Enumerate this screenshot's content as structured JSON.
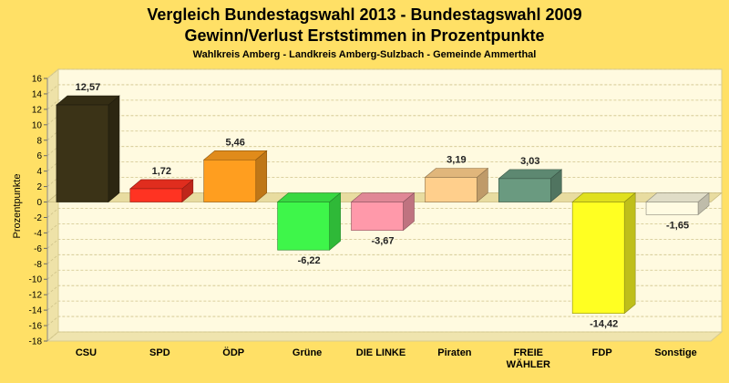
{
  "chart_data": {
    "type": "bar",
    "title": "Vergleich Bundestagswahl 2013 - Bundestagswahl 2009",
    "subtitle": "Gewinn/Verlust Erststimmen in Prozentpunkte",
    "caption": "Wahlkreis Amberg - Landkreis Amberg-Sulzbach - Gemeinde Ammerthal",
    "ylabel": "Prozentpunkte",
    "xlabel": "",
    "ylim": [
      -18,
      16
    ],
    "yticks": [
      16,
      14,
      12,
      10,
      8,
      6,
      4,
      2,
      0,
      -2,
      -4,
      -6,
      -8,
      -10,
      -12,
      -14,
      -16,
      -18
    ],
    "grid": true,
    "categories": [
      "CSU",
      "SPD",
      "ÖDP",
      "Grüne",
      "DIE LINKE",
      "Piraten",
      "FREIE WÄHLER",
      "FDP",
      "Sonstige"
    ],
    "category_label_lines": [
      [
        "CSU"
      ],
      [
        "SPD"
      ],
      [
        "ÖDP"
      ],
      [
        "Grüne"
      ],
      [
        "DIE LINKE"
      ],
      [
        "Piraten"
      ],
      [
        "FREIE",
        "WÄHLER"
      ],
      [
        "FDP"
      ],
      [
        "Sonstige"
      ]
    ],
    "values": [
      12.57,
      1.72,
      5.46,
      -6.22,
      -3.67,
      3.19,
      3.03,
      -14.42,
      -1.65
    ],
    "value_labels": [
      "12,57",
      "1,72",
      "5,46",
      "-6,22",
      "-3,67",
      "3,19",
      "3,03",
      "-14,42",
      "-1,65"
    ],
    "colors": [
      "#3b3317",
      "#ff3322",
      "#ff9e1f",
      "#3ef64a",
      "#ff99aa",
      "#ffcf8c",
      "#6a9a80",
      "#ffff22",
      "#fffbe2"
    ]
  }
}
